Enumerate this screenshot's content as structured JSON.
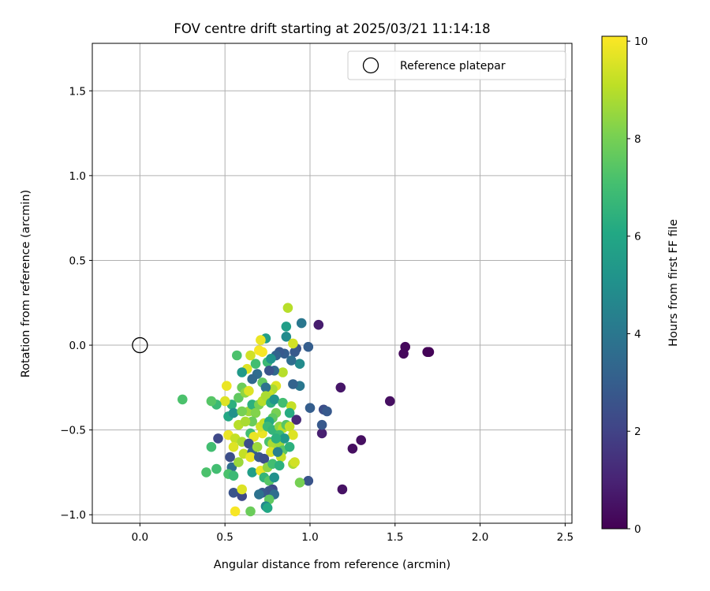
{
  "chart_data": {
    "type": "scatter",
    "title": "FOV centre drift starting at 2025/03/21 11:14:18",
    "xlabel": "Angular distance from reference (arcmin)",
    "ylabel": "Rotation from reference (arcmin)",
    "xlim": [
      -0.28,
      2.54
    ],
    "ylim": [
      -1.05,
      1.78
    ],
    "xticks": [
      0.0,
      0.5,
      1.0,
      1.5,
      2.0,
      2.5
    ],
    "xtick_labels": [
      "0.0",
      "0.5",
      "1.0",
      "1.5",
      "2.0",
      "2.5"
    ],
    "yticks": [
      -1.0,
      -0.5,
      0.0,
      0.5,
      1.0,
      1.5
    ],
    "ytick_labels": [
      "−1.0",
      "−0.5",
      "0.0",
      "0.5",
      "1.0",
      "1.5"
    ],
    "grid": true,
    "legend": {
      "placement": "top-right",
      "entries": [
        "Reference platepar"
      ]
    },
    "reference_point": {
      "x": 0.0,
      "y": 0.0,
      "label": "Reference platepar"
    },
    "colorbar": {
      "label": "Hours from first FF file",
      "range": [
        0,
        10.1
      ],
      "ticks": [
        0,
        2,
        4,
        6,
        8,
        10
      ],
      "tick_labels": [
        "0",
        "2",
        "4",
        "6",
        "8",
        "10"
      ],
      "colormap": "viridis"
    },
    "points": [
      [
        1.7,
        -0.04,
        0.1
      ],
      [
        1.69,
        -0.04,
        0.1
      ],
      [
        1.56,
        -0.01,
        0.2
      ],
      [
        1.55,
        -0.05,
        0.2
      ],
      [
        1.47,
        -0.33,
        0.4
      ],
      [
        1.3,
        -0.56,
        0.4
      ],
      [
        1.25,
        -0.61,
        0.4
      ],
      [
        1.19,
        -0.85,
        0.5
      ],
      [
        1.18,
        -0.25,
        0.6
      ],
      [
        1.05,
        0.12,
        0.8
      ],
      [
        1.07,
        -0.52,
        0.9
      ],
      [
        1.08,
        -0.38,
        2.4
      ],
      [
        1.1,
        -0.39,
        2.8
      ],
      [
        1.07,
        -0.47,
        2.8
      ],
      [
        1.0,
        -0.37,
        3.0
      ],
      [
        0.99,
        -0.8,
        2.6
      ],
      [
        0.99,
        -0.01,
        3.0
      ],
      [
        0.92,
        -0.44,
        1.2
      ],
      [
        0.92,
        -0.02,
        2.6
      ],
      [
        0.91,
        -0.04,
        2.8
      ],
      [
        0.95,
        0.13,
        4.0
      ],
      [
        0.94,
        -0.24,
        4.0
      ],
      [
        0.9,
        -0.23,
        3.2
      ],
      [
        0.94,
        -0.11,
        4.8
      ],
      [
        0.89,
        -0.09,
        3.6
      ],
      [
        0.86,
        0.05,
        4.8
      ],
      [
        0.86,
        0.11,
        5.6
      ],
      [
        0.85,
        -0.05,
        3.0
      ],
      [
        0.82,
        -0.04,
        2.8
      ],
      [
        0.8,
        -0.06,
        3.2
      ],
      [
        0.87,
        0.22,
        9.0
      ],
      [
        0.9,
        0.01,
        9.4
      ],
      [
        0.84,
        -0.16,
        9.0
      ],
      [
        0.8,
        -0.24,
        9.6
      ],
      [
        0.78,
        -0.26,
        8.8
      ],
      [
        0.76,
        -0.29,
        9.2
      ],
      [
        0.74,
        0.04,
        5.6
      ],
      [
        0.71,
        0.03,
        9.8
      ],
      [
        0.7,
        -0.03,
        10.0
      ],
      [
        0.72,
        -0.04,
        10.0
      ],
      [
        0.65,
        -0.06,
        9.4
      ],
      [
        0.68,
        -0.11,
        7.0
      ],
      [
        0.75,
        -0.1,
        6.8
      ],
      [
        0.77,
        -0.08,
        5.2
      ],
      [
        0.79,
        -0.15,
        3.4
      ],
      [
        0.76,
        -0.15,
        2.6
      ],
      [
        0.69,
        -0.17,
        3.6
      ],
      [
        0.66,
        -0.2,
        3.4
      ],
      [
        0.72,
        -0.22,
        7.6
      ],
      [
        0.74,
        -0.25,
        3.8
      ],
      [
        0.63,
        -0.14,
        9.6
      ],
      [
        0.6,
        -0.16,
        5.4
      ],
      [
        0.57,
        -0.06,
        7.2
      ],
      [
        0.54,
        -0.35,
        6.4
      ],
      [
        0.51,
        -0.24,
        9.8
      ],
      [
        0.5,
        -0.33,
        9.6
      ],
      [
        0.45,
        -0.35,
        6.8
      ],
      [
        0.42,
        -0.33,
        7.4
      ],
      [
        0.46,
        -0.55,
        2.2
      ],
      [
        0.42,
        -0.6,
        7.0
      ],
      [
        0.45,
        -0.73,
        7.0
      ],
      [
        0.39,
        -0.75,
        7.2
      ],
      [
        0.25,
        -0.32,
        7.2
      ],
      [
        0.52,
        -0.42,
        6.0
      ],
      [
        0.55,
        -0.4,
        5.0
      ],
      [
        0.52,
        -0.53,
        9.8
      ],
      [
        0.56,
        -0.55,
        9.2
      ],
      [
        0.58,
        -0.47,
        9.0
      ],
      [
        0.6,
        -0.57,
        8.8
      ],
      [
        0.55,
        -0.6,
        9.6
      ],
      [
        0.53,
        -0.66,
        2.4
      ],
      [
        0.54,
        -0.72,
        3.6
      ],
      [
        0.52,
        -0.76,
        7.2
      ],
      [
        0.55,
        -0.77,
        6.8
      ],
      [
        0.55,
        -0.87,
        2.6
      ],
      [
        0.6,
        -0.89,
        2.2
      ],
      [
        0.6,
        -0.85,
        9.6
      ],
      [
        0.56,
        -0.98,
        10.0
      ],
      [
        0.65,
        -0.98,
        7.8
      ],
      [
        0.61,
        -0.64,
        9.2
      ],
      [
        0.58,
        -0.69,
        8.6
      ],
      [
        0.58,
        -0.31,
        7.6
      ],
      [
        0.6,
        -0.25,
        7.8
      ],
      [
        0.62,
        -0.28,
        8.4
      ],
      [
        0.64,
        -0.27,
        9.6
      ],
      [
        0.64,
        -0.39,
        8.6
      ],
      [
        0.6,
        -0.39,
        8.0
      ],
      [
        0.66,
        -0.35,
        6.4
      ],
      [
        0.68,
        -0.4,
        8.2
      ],
      [
        0.66,
        -0.45,
        7.8
      ],
      [
        0.62,
        -0.45,
        8.8
      ],
      [
        0.65,
        -0.52,
        7.0
      ],
      [
        0.67,
        -0.54,
        9.8
      ],
      [
        0.64,
        -0.58,
        2.4
      ],
      [
        0.66,
        -0.63,
        3.2
      ],
      [
        0.65,
        -0.66,
        9.8
      ],
      [
        0.66,
        -0.75,
        5.6
      ],
      [
        0.69,
        -0.6,
        8.6
      ],
      [
        0.7,
        -0.66,
        2.8
      ],
      [
        0.71,
        -0.74,
        9.8
      ],
      [
        0.72,
        -0.52,
        9.8
      ],
      [
        0.71,
        -0.48,
        9.4
      ],
      [
        0.73,
        -0.46,
        9.2
      ],
      [
        0.7,
        -0.35,
        8.0
      ],
      [
        0.72,
        -0.33,
        9.0
      ],
      [
        0.74,
        -0.3,
        8.8
      ],
      [
        0.77,
        -0.34,
        6.4
      ],
      [
        0.79,
        -0.32,
        5.2
      ],
      [
        0.8,
        -0.4,
        8.0
      ],
      [
        0.78,
        -0.43,
        7.6
      ],
      [
        0.76,
        -0.45,
        6.2
      ],
      [
        0.75,
        -0.48,
        6.8
      ],
      [
        0.78,
        -0.5,
        6.6
      ],
      [
        0.76,
        -0.57,
        7.2
      ],
      [
        0.78,
        -0.58,
        8.8
      ],
      [
        0.77,
        -0.63,
        9.6
      ],
      [
        0.73,
        -0.67,
        2.4
      ],
      [
        0.75,
        -0.72,
        8.4
      ],
      [
        0.78,
        -0.7,
        7.0
      ],
      [
        0.73,
        -0.78,
        6.6
      ],
      [
        0.76,
        -0.8,
        7.4
      ],
      [
        0.79,
        -0.78,
        5.0
      ],
      [
        0.78,
        -0.85,
        2.2
      ],
      [
        0.76,
        -0.86,
        2.6
      ],
      [
        0.72,
        -0.87,
        2.8
      ],
      [
        0.7,
        -0.88,
        3.8
      ],
      [
        0.79,
        -0.88,
        3.6
      ],
      [
        0.76,
        -0.91,
        7.6
      ],
      [
        0.74,
        -0.95,
        4.6
      ],
      [
        0.75,
        -0.96,
        6.0
      ],
      [
        0.82,
        -0.48,
        8.4
      ],
      [
        0.84,
        -0.49,
        9.0
      ],
      [
        0.86,
        -0.47,
        7.4
      ],
      [
        0.82,
        -0.58,
        8.6
      ],
      [
        0.84,
        -0.62,
        7.4
      ],
      [
        0.83,
        -0.66,
        9.2
      ],
      [
        0.82,
        -0.71,
        6.4
      ],
      [
        0.84,
        -0.34,
        7.0
      ],
      [
        0.82,
        -0.53,
        6.8
      ],
      [
        0.88,
        -0.48,
        9.2
      ],
      [
        0.9,
        -0.53,
        9.6
      ],
      [
        0.88,
        -0.6,
        6.4
      ],
      [
        0.9,
        -0.7,
        8.8
      ],
      [
        0.91,
        -0.69,
        9.4
      ],
      [
        0.94,
        -0.81,
        8.0
      ],
      [
        0.89,
        -0.36,
        9.2
      ],
      [
        0.88,
        -0.4,
        6.2
      ],
      [
        0.85,
        -0.55,
        5.4
      ],
      [
        0.8,
        -0.55,
        6.4
      ],
      [
        0.81,
        -0.63,
        4.4
      ]
    ]
  }
}
